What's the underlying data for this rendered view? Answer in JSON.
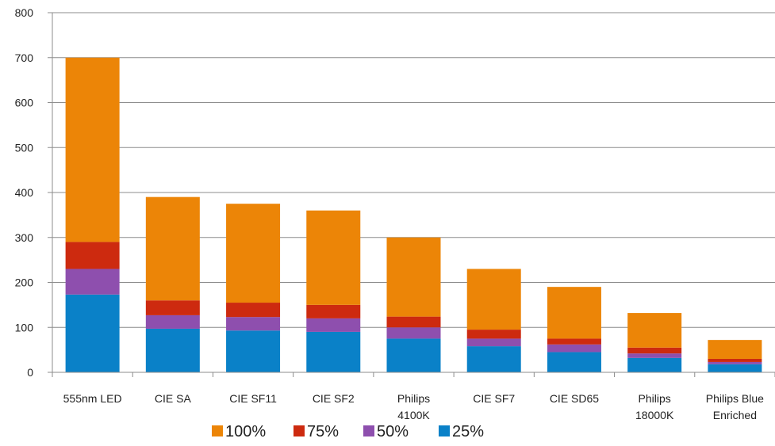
{
  "chart_data": {
    "type": "bar",
    "stacked": true,
    "categories": [
      "555nm LED",
      "CIE SA",
      "CIE SF11",
      "CIE SF2",
      "Philips 4100K",
      "CIE SF7",
      "CIE SD65",
      "Philips 18000K",
      "Philips Blue Enriched"
    ],
    "category_lines": [
      [
        "555nm LED"
      ],
      [
        "CIE SA"
      ],
      [
        "CIE SF11"
      ],
      [
        "CIE SF2"
      ],
      [
        "Philips",
        "4100K"
      ],
      [
        "CIE SF7"
      ],
      [
        "CIE SD65"
      ],
      [
        "Philips",
        "18000K"
      ],
      [
        "Philips Blue",
        "Enriched"
      ]
    ],
    "series": [
      {
        "name": "25%",
        "color": "#0a81c8",
        "values": [
          173,
          97,
          93,
          90,
          75,
          58,
          45,
          32,
          18
        ]
      },
      {
        "name": "50%",
        "color": "#8e4fae",
        "values": [
          57,
          30,
          30,
          30,
          25,
          17,
          17,
          10,
          5
        ]
      },
      {
        "name": "75%",
        "color": "#cd2a0f",
        "values": [
          60,
          33,
          32,
          30,
          24,
          20,
          13,
          13,
          7
        ]
      },
      {
        "name": "100%",
        "color": "#ec8507",
        "values": [
          410,
          230,
          220,
          210,
          176,
          135,
          115,
          77,
          42
        ]
      }
    ],
    "legend_order": [
      "100%",
      "75%",
      "50%",
      "25%"
    ],
    "yticks": [
      0,
      100,
      200,
      300,
      400,
      500,
      600,
      700,
      800
    ],
    "ylim": [
      0,
      800
    ],
    "grid": true,
    "legend_position": "bottom",
    "title": "",
    "xlabel": "",
    "ylabel": ""
  }
}
